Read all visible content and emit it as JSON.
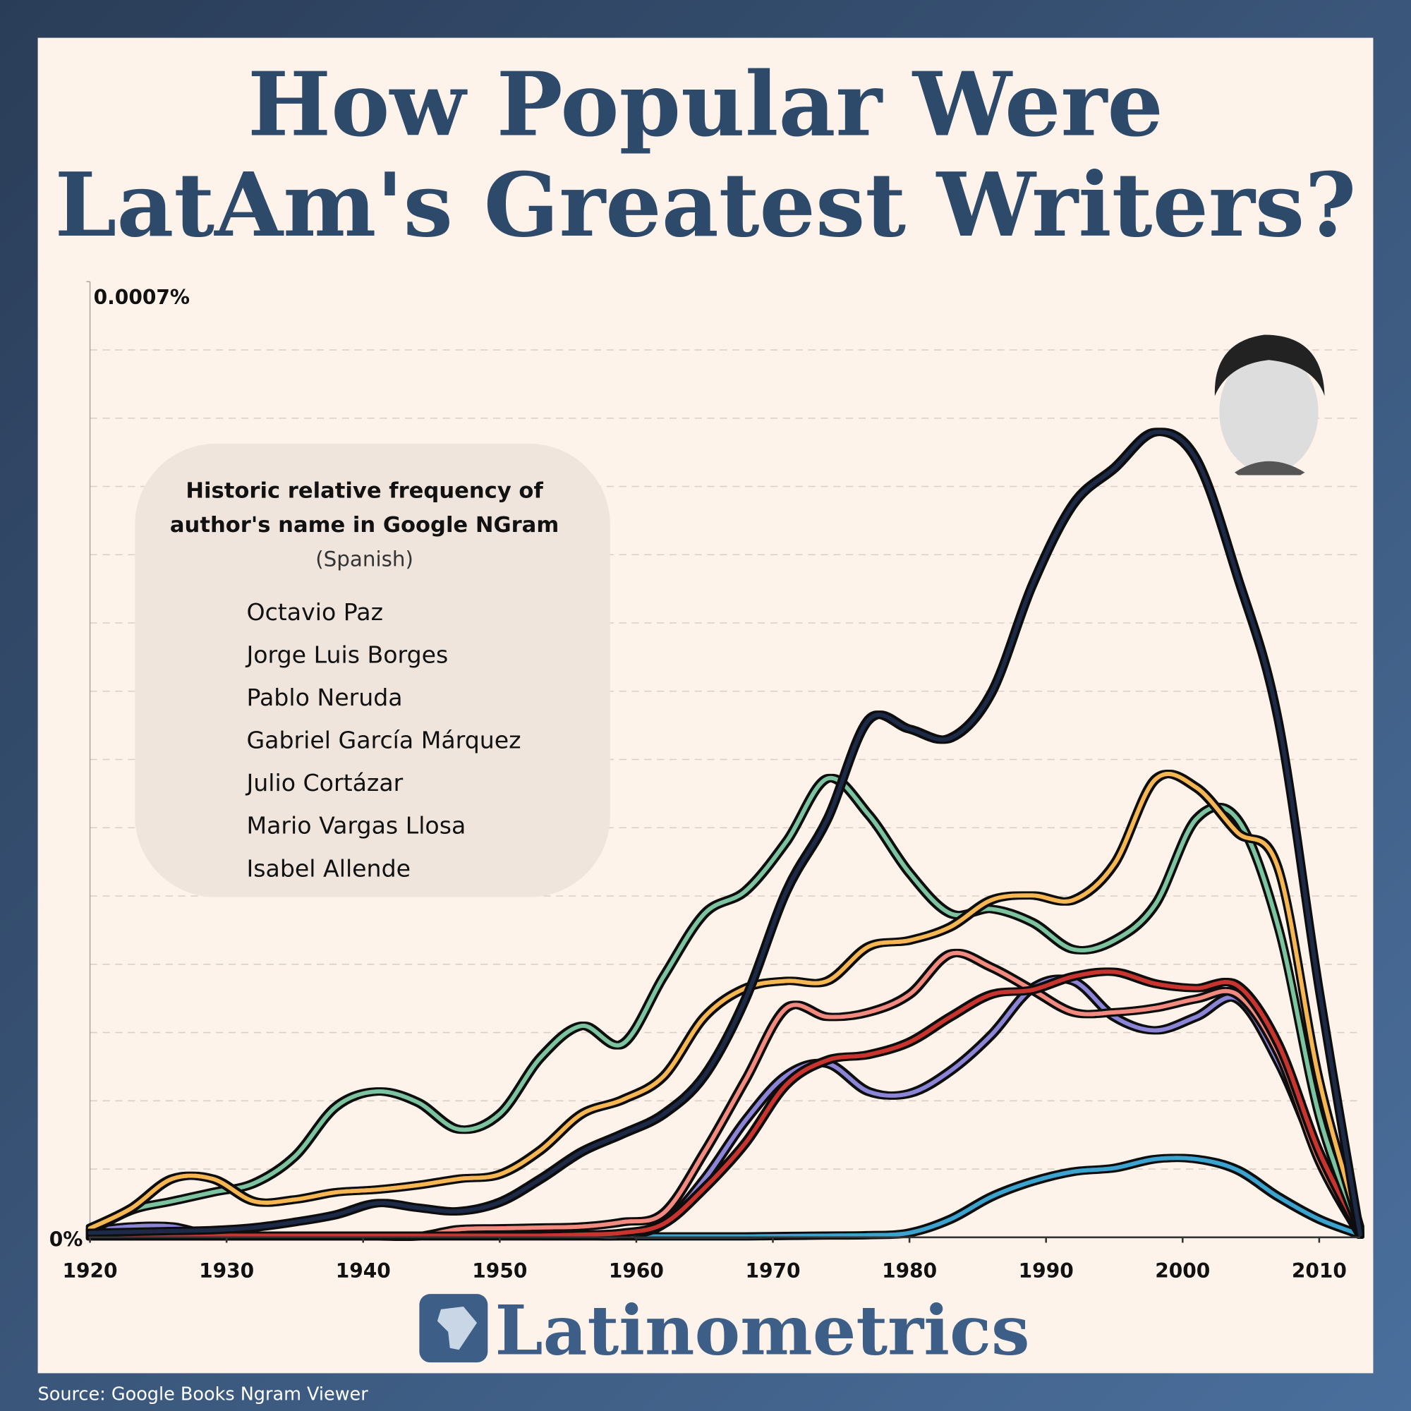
{
  "chart_data": {
    "type": "line",
    "title": [
      "How Popular Were",
      "LatAm's Greatest Writers?"
    ],
    "legend_title": [
      "Historic relative frequency of",
      "author's name in Google NGram"
    ],
    "legend_subtitle": "(Spanish)",
    "source": "Source: Google Books Ngram Viewer",
    "brand": "Latinometrics",
    "xlim": [
      1920,
      2013
    ],
    "xticks": [
      1920,
      1930,
      1940,
      1950,
      1960,
      1970,
      1980,
      1990,
      2000,
      2010
    ],
    "ylim": [
      0,
      0.0007
    ],
    "yticks": [
      {
        "value": 0,
        "label": "0%"
      },
      {
        "value": 0.0007,
        "label": "0.0007%"
      }
    ],
    "grid": [
      5e-05,
      0.0001,
      0.00015,
      0.0002,
      0.00025,
      0.0003,
      0.00035,
      0.0004,
      0.00045,
      0.0005,
      0.00055,
      0.0006,
      0.00065
    ],
    "x": [
      1920,
      1923,
      1926,
      1929,
      1932,
      1935,
      1938,
      1941,
      1944,
      1947,
      1950,
      1953,
      1956,
      1959,
      1962,
      1965,
      1968,
      1971,
      1974,
      1977,
      1980,
      1983,
      1986,
      1989,
      1992,
      1995,
      1998,
      2001,
      2004,
      2007,
      2010,
      2013
    ],
    "series": [
      {
        "name": "Octavio Paz",
        "color": "#1b2a47",
        "values": [
          3.3e-06,
          4e-06,
          4.6e-06,
          5.3e-06,
          7.2e-06,
          1.12e-05,
          1.65e-05,
          2.5e-05,
          2.17e-05,
          1.91e-05,
          2.57e-05,
          4.28e-05,
          6.26e-05,
          7.58e-05,
          9.03e-05,
          0.0001186,
          0.0001746,
          0.0002537,
          0.0003064,
          0.0003789,
          0.0003723,
          0.0003657,
          0.0003987,
          0.0004778,
          0.0005371,
          0.0005634,
          0.0005898,
          0.00057,
          0.0004844,
          0.0003789,
          0.0001812,
          2e-06
        ]
      },
      {
        "name": "Jorge Luis Borges",
        "color": "#f6b651",
        "values": [
          6.6e-06,
          2.11e-05,
          4.28e-05,
          4.28e-05,
          2.64e-05,
          2.77e-05,
          3.3e-05,
          3.49e-05,
          3.82e-05,
          4.28e-05,
          4.61e-05,
          6.39e-05,
          9.03e-05,
          0.0001008,
          0.000118,
          0.0001615,
          0.0001825,
          0.0001878,
          0.0001878,
          0.0002129,
          0.0002175,
          0.0002274,
          0.0002471,
          0.0002504,
          0.0002471,
          0.0002735,
          0.0003354,
          0.0003295,
          0.0002966,
          0.0002702,
          0.0001153,
          6.6e-06
        ]
      },
      {
        "name": "Pablo Neruda",
        "color": "#7cc4a0",
        "values": [
          4.6e-06,
          1.98e-05,
          2.64e-05,
          3.3e-05,
          3.96e-05,
          5.93e-05,
          9.56e-05,
          0.0001068,
          9.89e-05,
          7.91e-05,
          9.03e-05,
          0.0001318,
          0.0001549,
          0.0001417,
          0.0001911,
          0.0002372,
          0.0002537,
          0.00029,
          0.0003361,
          0.0003097,
          0.0002669,
          0.0002372,
          0.0002405,
          0.0002307,
          0.0002109,
          0.0002175,
          0.0002438,
          0.0003064,
          0.0003064,
          0.0002274,
          8.9e-05,
          4.6e-06
        ]
      },
      {
        "name": "Gabriel García Márquez",
        "color": "#c9362f",
        "values": [
          1.3e-06,
          1.3e-06,
          1.3e-06,
          1.3e-06,
          1.3e-06,
          1.3e-06,
          1.3e-06,
          1.3e-06,
          1.3e-06,
          1.3e-06,
          1.3e-06,
          1.3e-06,
          2e-06,
          3.3e-06,
          9.9e-06,
          3.62e-05,
          6.92e-05,
          0.000112,
          0.0001298,
          0.0001338,
          0.000143,
          0.0001615,
          0.0001779,
          0.0001812,
          0.0001911,
          0.0001944,
          0.0001858,
          0.0001825,
          0.0001845,
          0.0001417,
          6.26e-05,
          3.3e-06
        ]
      },
      {
        "name": "Julio Cortázar",
        "color": "#f28a80",
        "values": [
          7e-07,
          7e-07,
          7e-07,
          7e-07,
          7e-07,
          7e-07,
          7e-07,
          7e-07,
          7e-07,
          5.9e-06,
          6.6e-06,
          7.2e-06,
          7.9e-06,
          1.12e-05,
          1.78e-05,
          6.26e-05,
          0.0001153,
          0.000168,
          0.0001615,
          0.0001648,
          0.0001779,
          0.0002076,
          0.0001977,
          0.0001812,
          0.0001648,
          0.0001648,
          0.000168,
          0.0001746,
          0.0001779,
          0.0001351,
          5.6e-05,
          2e-06
        ]
      },
      {
        "name": "Mario Vargas Llosa",
        "color": "#8b84d7",
        "values": [
          4.6e-06,
          7.9e-06,
          7.9e-06,
          1.3e-06,
          1.3e-06,
          1.3e-06,
          1.3e-06,
          1.3e-06,
          1.3e-06,
          1.3e-06,
          1.3e-06,
          1.3e-06,
          1.3e-06,
          1.3e-06,
          9.9e-06,
          4.28e-05,
          8.57e-05,
          0.0001186,
          0.0001272,
          0.0001068,
          0.0001054,
          0.0001219,
          0.0001483,
          0.0001825,
          0.0001878,
          0.0001615,
          0.0001516,
          0.0001615,
          0.0001746,
          0.0001285,
          5.93e-05,
          2e-06
        ]
      },
      {
        "name": "Isabel Allende",
        "color": "#3aa3cf",
        "values": [
          7e-07,
          7e-07,
          7e-07,
          7e-07,
          7e-07,
          7e-07,
          7e-07,
          7e-07,
          7e-07,
          7e-07,
          7e-07,
          7e-07,
          7e-07,
          7e-07,
          7e-07,
          7e-07,
          7e-07,
          1e-06,
          1.3e-06,
          1.6e-06,
          3.3e-06,
          1.32e-05,
          2.97e-05,
          4.09e-05,
          4.81e-05,
          5.07e-05,
          5.73e-05,
          5.73e-05,
          4.94e-05,
          2.97e-05,
          1.32e-05,
          2e-06
        ]
      }
    ]
  }
}
